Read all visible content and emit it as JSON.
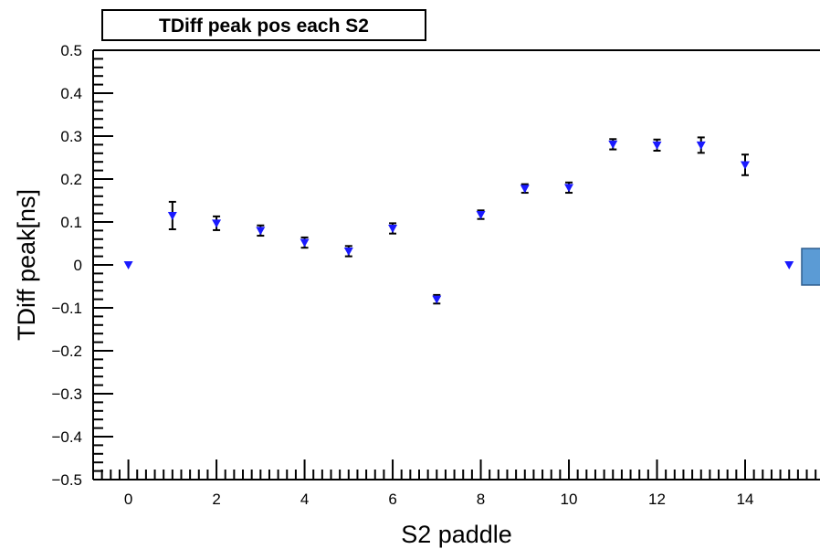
{
  "chart_data": {
    "type": "scatter",
    "title": "TDiff peak pos each S2",
    "xlabel": "S2 paddle",
    "ylabel": "TDiff peak[ns]",
    "xlim": [
      -0.8,
      15.7
    ],
    "ylim": [
      -0.5,
      0.5
    ],
    "xticks": [
      0,
      2,
      4,
      6,
      8,
      10,
      12,
      14
    ],
    "yticks": [
      -0.5,
      -0.4,
      -0.3,
      -0.2,
      -0.1,
      0,
      0.1,
      0.2,
      0.3,
      0.4,
      0.5
    ],
    "ytick_labels": [
      "−0.5",
      "−0.4",
      "−0.3",
      "−0.2",
      "−0.1",
      "0",
      "0.1",
      "0.2",
      "0.3",
      "0.4",
      "0.5"
    ],
    "grid": false,
    "marker_color": "#1a1aff",
    "error_color": "#000000",
    "stats_box_color": "#5b9bd5",
    "x": [
      0,
      1,
      2,
      3,
      4,
      5,
      6,
      7,
      8,
      9,
      10,
      11,
      12,
      13,
      14,
      15
    ],
    "y": [
      0,
      0.115,
      0.097,
      0.08,
      0.052,
      0.032,
      0.085,
      -0.08,
      0.117,
      0.178,
      0.18,
      0.281,
      0.279,
      0.279,
      0.233,
      0
    ],
    "y_error": [
      0,
      0.032,
      0.016,
      0.012,
      0.012,
      0.012,
      0.012,
      0.01,
      0.01,
      0.01,
      0.012,
      0.012,
      0.013,
      0.018,
      0.024,
      0
    ]
  }
}
